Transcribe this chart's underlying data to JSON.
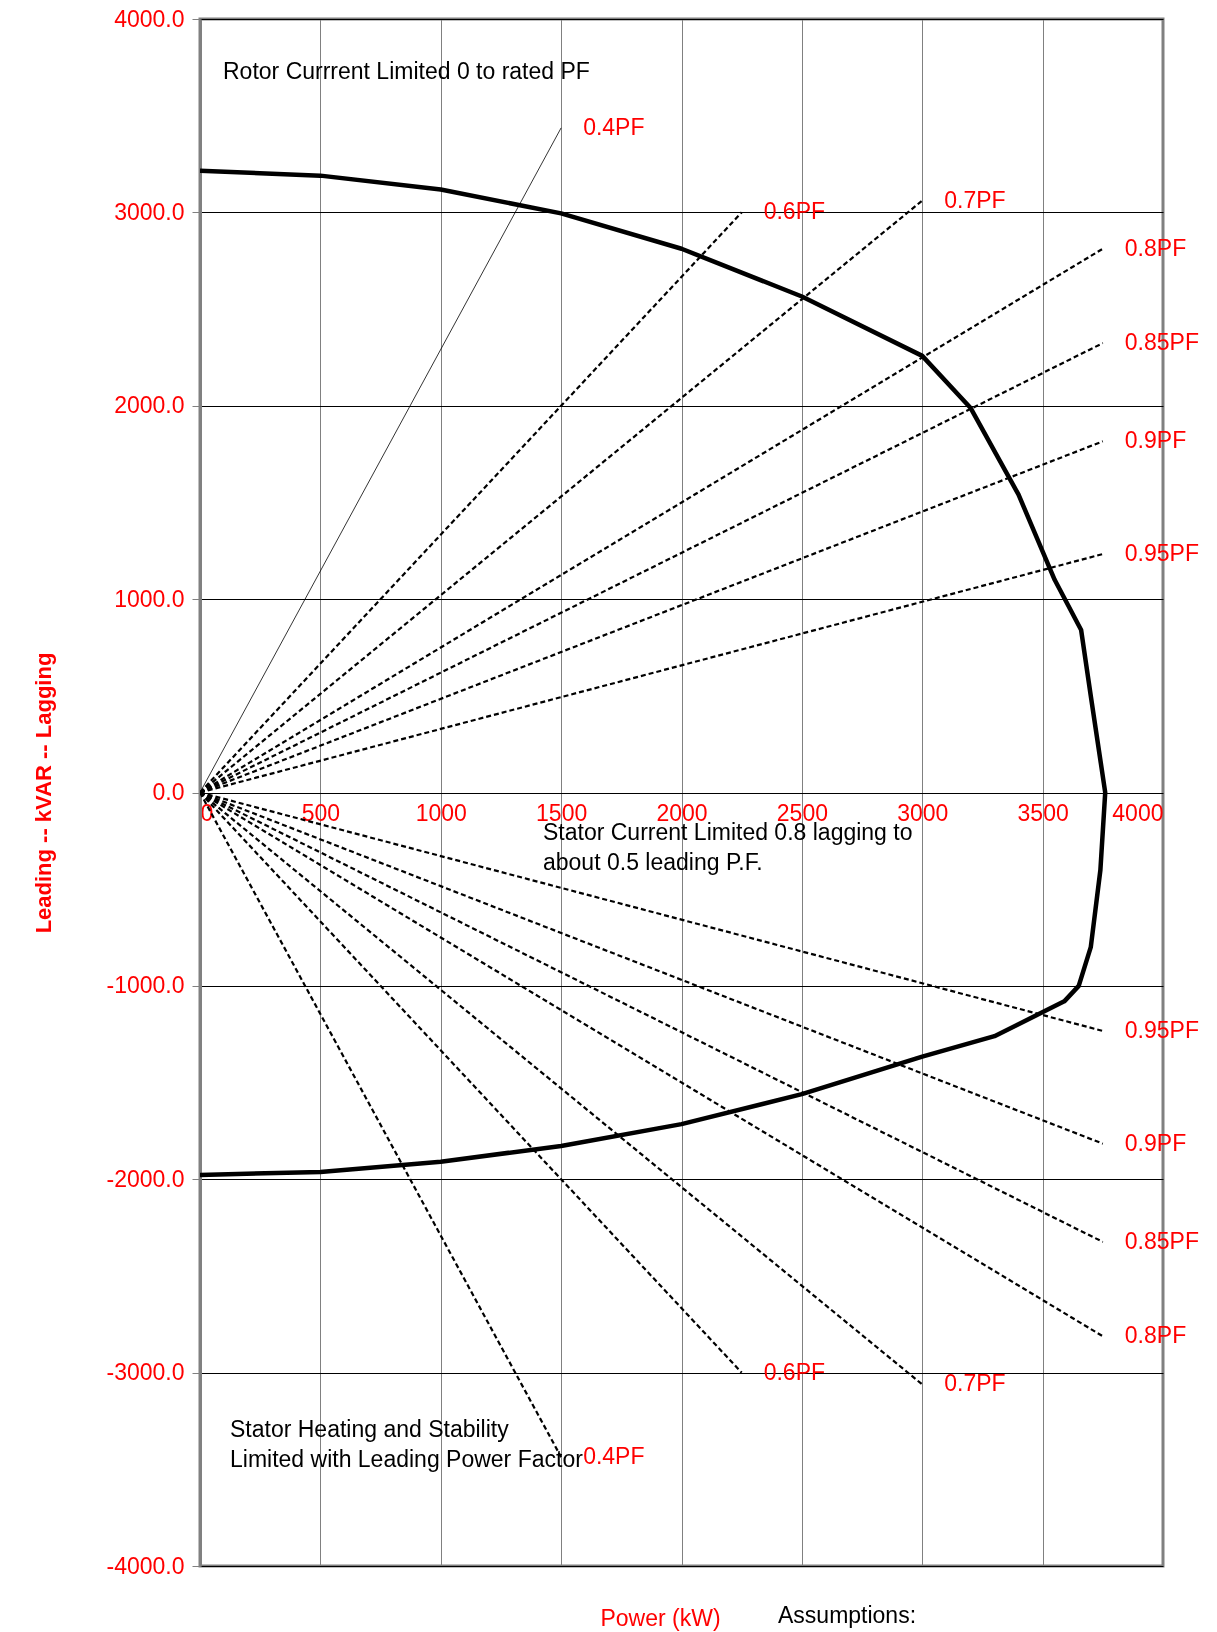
{
  "chart_data": {
    "type": "line",
    "xlabel": "Power (kW)",
    "ylabel": "Leading -- kVAR -- Lagging",
    "xlim": [
      0,
      4000
    ],
    "ylim": [
      -4000,
      4000
    ],
    "xticks": [
      0,
      500,
      1000,
      1500,
      2000,
      2500,
      3000,
      3500,
      4000
    ],
    "yticks": [
      {
        "value": 4000,
        "label": "4000.0"
      },
      {
        "value": 3000,
        "label": "3000.0"
      },
      {
        "value": 2000,
        "label": "2000.0"
      },
      {
        "value": 1000,
        "label": "1000.0"
      },
      {
        "value": 0,
        "label": "0.0"
      },
      {
        "value": -1000,
        "label": "-1000.0"
      },
      {
        "value": -2000,
        "label": "-2000.0"
      },
      {
        "value": -3000,
        "label": "-3000.0"
      },
      {
        "value": -4000,
        "label": "-4000.0"
      }
    ],
    "grid": true,
    "series": [
      {
        "color": "#000000",
        "line_style": "solid",
        "x": [
          0,
          500,
          1000,
          1500,
          2000,
          2500,
          3000,
          3200,
          3400,
          3550,
          3660,
          3700,
          3760,
          3740,
          3700,
          3650,
          3590,
          3300,
          3000,
          2500,
          2000,
          1500,
          1000,
          500,
          0
        ],
        "values": [
          3215,
          3190,
          3118,
          2995,
          2812,
          2565,
          2258,
          1990,
          1540,
          1100,
          840,
          500,
          0,
          -400,
          -800,
          -1000,
          -1080,
          -1260,
          -1366,
          -1560,
          -1715,
          -1828,
          -1909,
          -1962,
          -1978
        ]
      },
      {
        "name": "0.4PF",
        "color": "#000000",
        "line_style": "solid",
        "x": [
          0,
          1500
        ],
        "values": [
          0,
          3437
        ]
      },
      {
        "name": "0.6PF",
        "color": "#000000",
        "line_style": "dashed",
        "x": [
          0,
          2250
        ],
        "values": [
          0,
          3000
        ]
      },
      {
        "name": "0.7PF",
        "color": "#000000",
        "line_style": "dashed",
        "x": [
          0,
          3000
        ],
        "values": [
          0,
          3061
        ]
      },
      {
        "name": "0.8PF",
        "color": "#000000",
        "line_style": "dashed",
        "x": [
          0,
          3750
        ],
        "values": [
          0,
          2812
        ]
      },
      {
        "name": "0.85PF",
        "color": "#000000",
        "line_style": "dashed",
        "x": [
          0,
          3750
        ],
        "values": [
          0,
          2324
        ]
      },
      {
        "name": "0.9PF",
        "color": "#000000",
        "line_style": "dashed",
        "x": [
          0,
          3750
        ],
        "values": [
          0,
          1816
        ]
      },
      {
        "name": "0.95PF",
        "color": "#000000",
        "line_style": "dashed",
        "x": [
          0,
          3750
        ],
        "values": [
          0,
          1233
        ]
      },
      {
        "name": "0.95PF",
        "color": "#000000",
        "line_style": "dashed",
        "x": [
          0,
          3750
        ],
        "values": [
          0,
          -1233
        ]
      },
      {
        "name": "0.9PF",
        "color": "#000000",
        "line_style": "dashed",
        "x": [
          0,
          3750
        ],
        "values": [
          0,
          -1816
        ]
      },
      {
        "name": "0.85PF",
        "color": "#000000",
        "line_style": "dashed",
        "x": [
          0,
          3750
        ],
        "values": [
          0,
          -2324
        ]
      },
      {
        "name": "0.8PF",
        "color": "#000000",
        "line_style": "dashed",
        "x": [
          0,
          3750
        ],
        "values": [
          0,
          -2812
        ]
      },
      {
        "name": "0.7PF",
        "color": "#000000",
        "line_style": "dashed",
        "x": [
          0,
          3000
        ],
        "values": [
          0,
          -3061
        ]
      },
      {
        "name": "0.6PF",
        "color": "#000000",
        "line_style": "dashed",
        "x": [
          0,
          2250
        ],
        "values": [
          0,
          -3000
        ]
      },
      {
        "name": "0.4PF",
        "color": "#000000",
        "line_style": "dashed",
        "x": [
          0,
          1500
        ],
        "values": [
          0,
          -3437
        ]
      }
    ],
    "annotations": [
      "Rotor Currrent Limited 0 to rated PF",
      "Stator Current Limited 0.8 lagging to about 0.5 leading P.F.",
      "Stator Heating and Stability Limited with Leading Power Factor",
      "Assumptions:"
    ]
  }
}
